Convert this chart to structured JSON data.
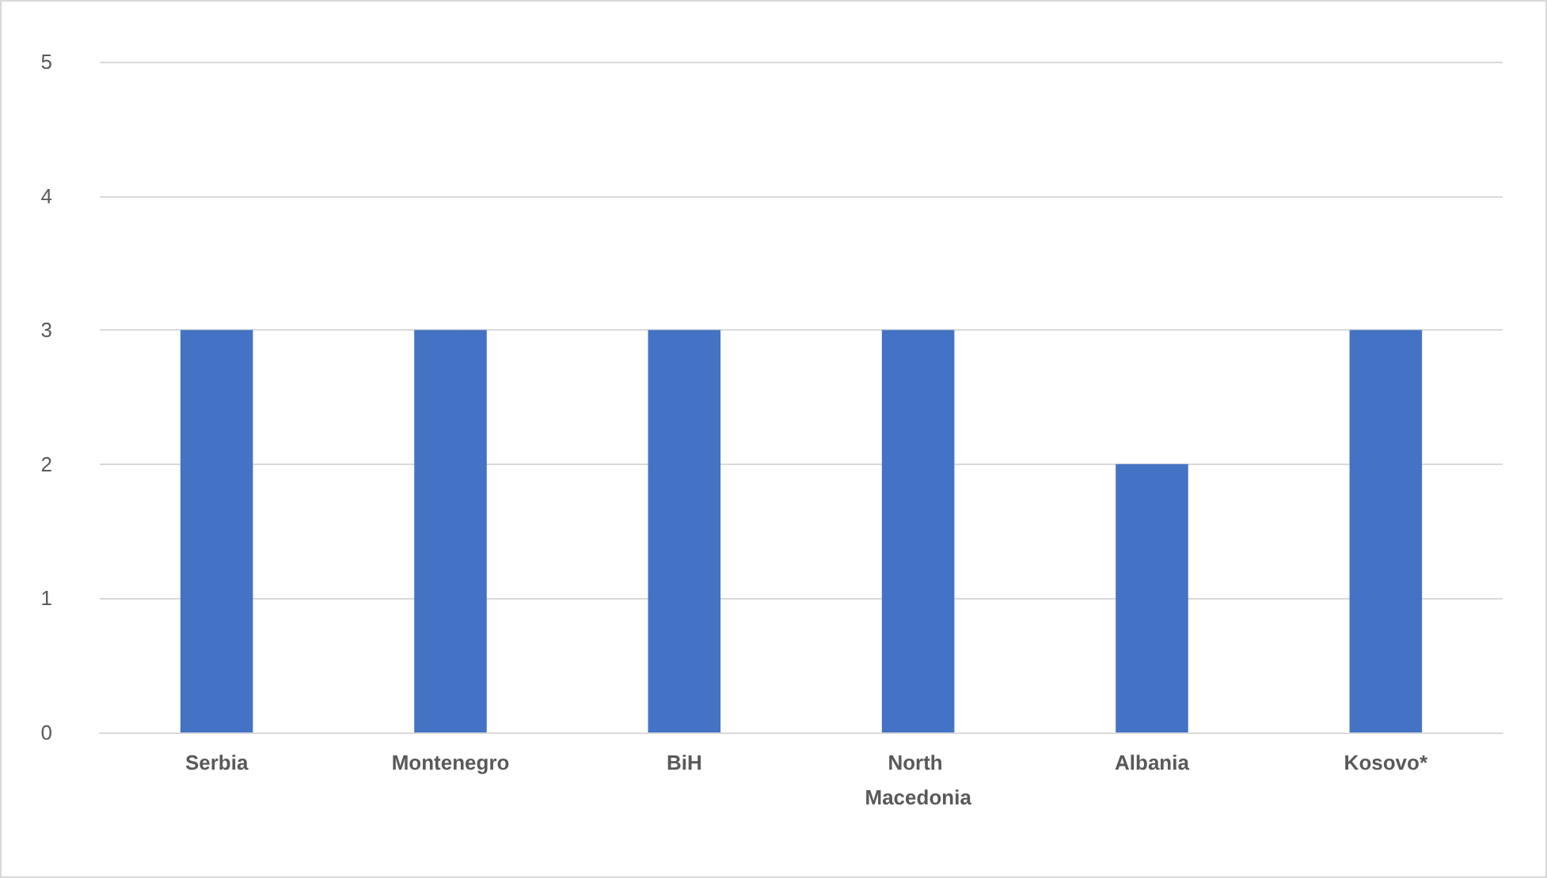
{
  "chart_data": {
    "type": "bar",
    "categories": [
      "Serbia",
      "Montenegro",
      "BiH",
      "North Macedonia",
      "Albania",
      "Kosovo*"
    ],
    "values": [
      3,
      3,
      3,
      3,
      2,
      3
    ],
    "color": "#4472c4",
    "ylim": [
      0,
      5
    ],
    "yticks": [
      0,
      1,
      2,
      3,
      4,
      5
    ],
    "grid": "y"
  }
}
